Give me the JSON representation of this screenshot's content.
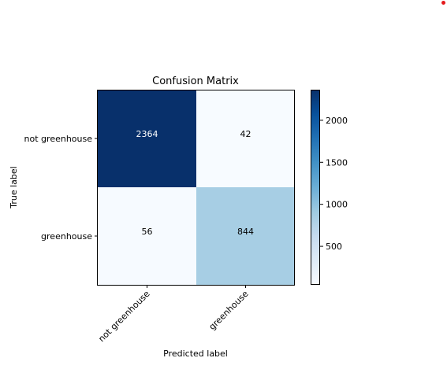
{
  "chart_data": {
    "type": "heatmap",
    "title": "Confusion Matrix",
    "xlabel": "Predicted label",
    "ylabel": "True label",
    "row_labels": [
      "not greenhouse",
      "greenhouse"
    ],
    "col_labels": [
      "not greenhouse",
      "greenhouse"
    ],
    "values": [
      [
        2364,
        42
      ],
      [
        56,
        844
      ]
    ],
    "colormap": "Blues",
    "colorbar": {
      "vmin": 42,
      "vmax": 2364,
      "ticks": [
        500,
        1000,
        1500,
        2000
      ]
    },
    "text_colors": {
      "light": "#ffffff",
      "dark": "#000000"
    }
  }
}
